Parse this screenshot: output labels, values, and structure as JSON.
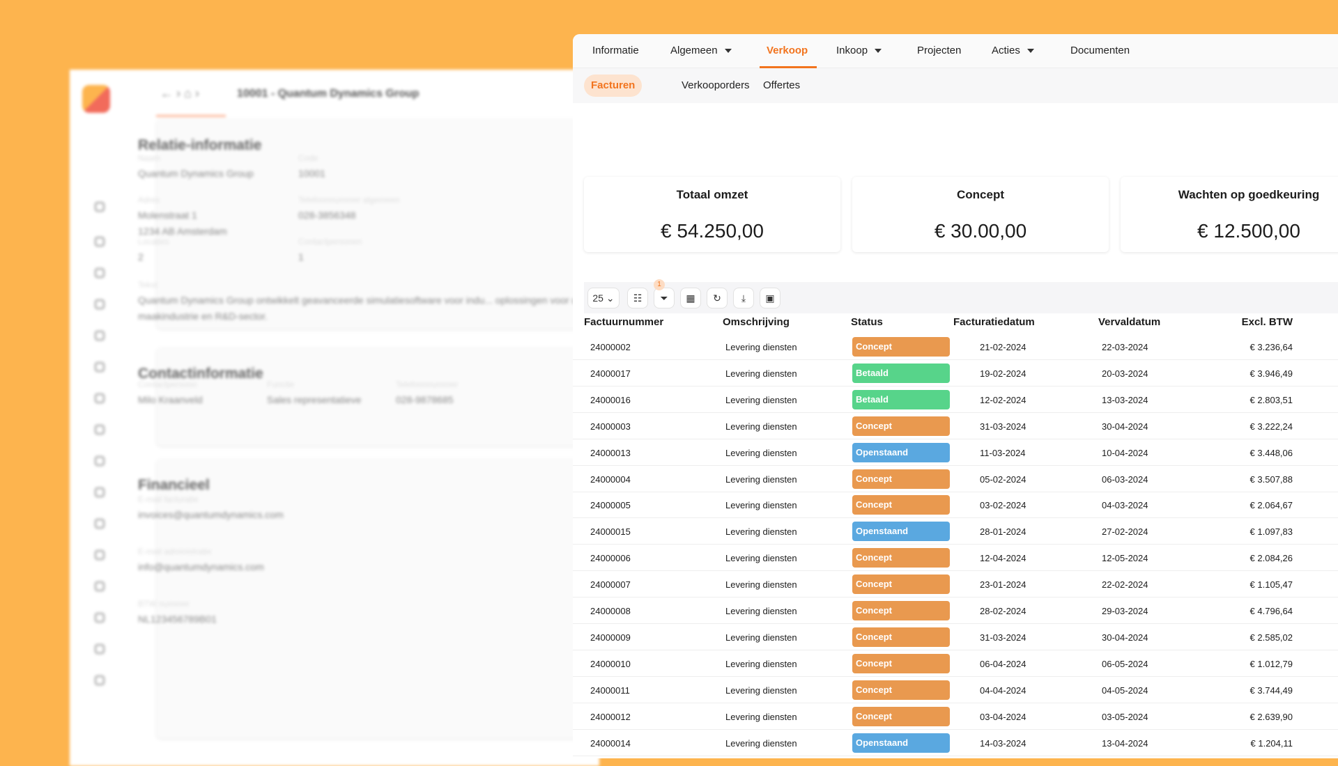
{
  "background_panel": {
    "breadcrumb": "10001 - Quantum Dynamics Group",
    "sections": [
      {
        "title": "Relatie-informatie",
        "fields": [
          {
            "label": "Naam",
            "value": "Quantum Dynamics Group"
          },
          {
            "label": "Code",
            "value": "10001"
          },
          {
            "label": "Adres",
            "value": "Molenstraat 1\n1234 AB Amsterdam"
          },
          {
            "label": "Telefoonnummer algemeen",
            "value": "028-3856348"
          },
          {
            "label": "Locaties",
            "value": "2"
          },
          {
            "label": "Contactpersonen",
            "value": "1"
          },
          {
            "label": "Tekst",
            "value": "Quantum Dynamics Group ontwikkelt geavanceerde simulatiesoftware voor indu... oplossingen voor de maakindustrie en R&D-sector."
          }
        ]
      },
      {
        "title": "Contactinformatie",
        "fields": [
          {
            "label": "Contactpersoon",
            "value": "Milo Kraanveld"
          },
          {
            "label": "Functie",
            "value": "Sales representatieve"
          },
          {
            "label": "Telefoonnummer",
            "value": "028-9878685"
          }
        ]
      },
      {
        "title": "Financieel",
        "fields": [
          {
            "label": "E-mail facturatie",
            "value": "invoices@quantumdynamics.com"
          },
          {
            "label": "E-mail administratie",
            "value": "info@quantumdynamics.com"
          },
          {
            "label": "BTW nummer",
            "value": "NL123456789B01"
          }
        ]
      }
    ]
  },
  "nav": {
    "tabs": [
      {
        "label": "Informatie",
        "dropdown": false
      },
      {
        "label": "Algemeen",
        "dropdown": true
      },
      {
        "label": "Verkoop",
        "dropdown": false,
        "active": true
      },
      {
        "label": "Inkoop",
        "dropdown": true
      },
      {
        "label": "Projecten",
        "dropdown": false
      },
      {
        "label": "Acties",
        "dropdown": true
      },
      {
        "label": "Documenten",
        "dropdown": false
      }
    ]
  },
  "subnav": {
    "tabs": [
      {
        "label": "Facturen",
        "active": true
      },
      {
        "label": "Verkooporders"
      },
      {
        "label": "Offertes"
      }
    ]
  },
  "cards": [
    {
      "title": "Totaal omzet",
      "value": "€ 54.250,00"
    },
    {
      "title": "Concept",
      "value": "€ 30.00,00"
    },
    {
      "title": "Wachten op goedkeuring",
      "value": "€ 12.500,00"
    }
  ],
  "toolbar": {
    "page_size": "25",
    "filter_count": "1",
    "icons": [
      "sliders-icon",
      "filter-icon",
      "grid-icon",
      "refresh-icon",
      "download-icon",
      "archive-icon"
    ]
  },
  "colors": {
    "accent": "#F2741E",
    "Concept": "#E9994F",
    "Betaald": "#57D48A",
    "Openstaand": "#5AA8E0",
    "background": "#FDB44E"
  },
  "table": {
    "columns": [
      "Factuurnummer",
      "Omschrijving",
      "Status",
      "Facturatiedatum",
      "Vervaldatum",
      "Excl. BTW"
    ],
    "rows": [
      [
        "24000002",
        "Levering diensten",
        "Concept",
        "21-02-2024",
        "22-03-2024",
        "€ 3.236,64"
      ],
      [
        "24000017",
        "Levering diensten",
        "Betaald",
        "19-02-2024",
        "20-03-2024",
        "€ 3.946,49"
      ],
      [
        "24000016",
        "Levering diensten",
        "Betaald",
        "12-02-2024",
        "13-03-2024",
        "€ 2.803,51"
      ],
      [
        "24000003",
        "Levering diensten",
        "Concept",
        "31-03-2024",
        "30-04-2024",
        "€ 3.222,24"
      ],
      [
        "24000013",
        "Levering diensten",
        "Openstaand",
        "11-03-2024",
        "10-04-2024",
        "€ 3.448,06"
      ],
      [
        "24000004",
        "Levering diensten",
        "Concept",
        "05-02-2024",
        "06-03-2024",
        "€ 3.507,88"
      ],
      [
        "24000005",
        "Levering diensten",
        "Concept",
        "03-02-2024",
        "04-03-2024",
        "€ 2.064,67"
      ],
      [
        "24000015",
        "Levering diensten",
        "Openstaand",
        "28-01-2024",
        "27-02-2024",
        "€ 1.097,83"
      ],
      [
        "24000006",
        "Levering diensten",
        "Concept",
        "12-04-2024",
        "12-05-2024",
        "€ 2.084,26"
      ],
      [
        "24000007",
        "Levering diensten",
        "Concept",
        "23-01-2024",
        "22-02-2024",
        "€ 1.105,47"
      ],
      [
        "24000008",
        "Levering diensten",
        "Concept",
        "28-02-2024",
        "29-03-2024",
        "€ 4.796,64"
      ],
      [
        "24000009",
        "Levering diensten",
        "Concept",
        "31-03-2024",
        "30-04-2024",
        "€ 2.585,02"
      ],
      [
        "24000010",
        "Levering diensten",
        "Concept",
        "06-04-2024",
        "06-05-2024",
        "€ 1.012,79"
      ],
      [
        "24000011",
        "Levering diensten",
        "Concept",
        "04-04-2024",
        "04-05-2024",
        "€ 3.744,49"
      ],
      [
        "24000012",
        "Levering diensten",
        "Concept",
        "03-04-2024",
        "03-05-2024",
        "€ 2.639,90"
      ],
      [
        "24000014",
        "Levering diensten",
        "Openstaand",
        "14-03-2024",
        "13-04-2024",
        "€ 1.204,11"
      ]
    ]
  }
}
